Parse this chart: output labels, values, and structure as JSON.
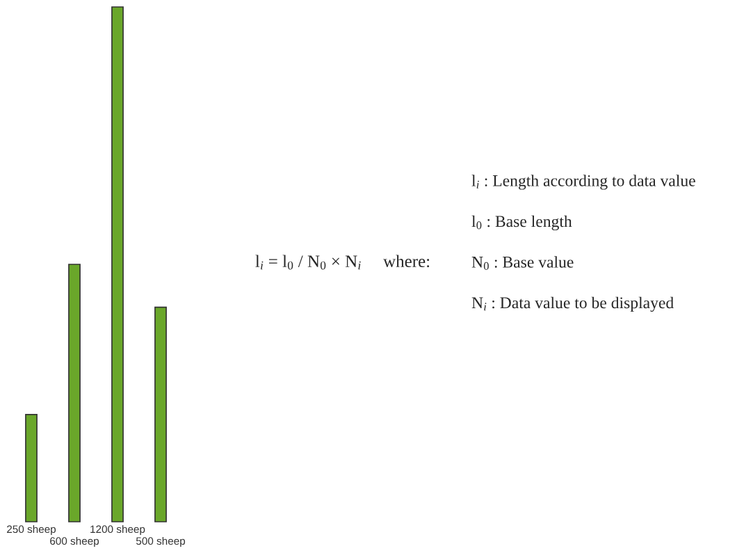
{
  "chart_data": {
    "type": "bar",
    "categories": [
      null,
      null,
      null,
      null
    ],
    "values": [
      250,
      600,
      1200,
      500
    ],
    "value_labels": [
      "250 sheep",
      "600 sheep",
      "1200 sheep",
      "500 sheep"
    ],
    "color": "#6aa72a",
    "annotations": [
      "l$_{i}$ = l$_{0}$ / N$_{0}$ × N$_{i}$     where:",
      "l$_{i}$ : Length according to data value",
      "l$_{0}$ : Base length",
      "N$_{0}$ : Base value",
      "N$_{i}$ : Data value to be displayed"
    ]
  }
}
